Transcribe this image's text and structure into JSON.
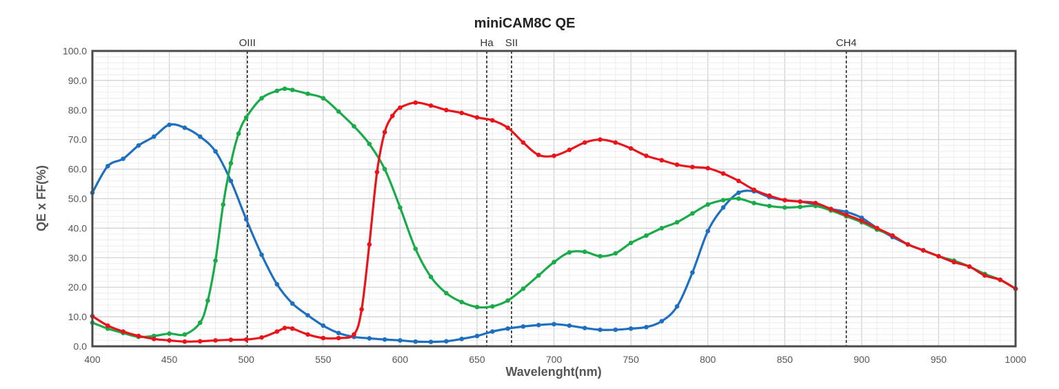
{
  "chart_data": {
    "type": "line",
    "title": "miniCAM8C QE",
    "xlabel": "Wavelenght(nm)",
    "ylabel": "QE x FF(%)",
    "xlim": [
      400,
      1000
    ],
    "ylim": [
      0,
      100
    ],
    "grid": true,
    "x_ticks": [
      "400",
      "450",
      "500",
      "550",
      "600",
      "650",
      "700",
      "750",
      "800",
      "850",
      "900",
      "950",
      "1000"
    ],
    "y_ticks": [
      "0.0",
      "10.0",
      "20.0",
      "30.0",
      "40.0",
      "50.0",
      "60.0",
      "70.0",
      "80.0",
      "90.0",
      "100.0"
    ],
    "reference_lines": [
      {
        "label": "OIII",
        "x": 500.7
      },
      {
        "label": "Ha",
        "x": 656.3
      },
      {
        "label": "SII",
        "x": 672.4
      },
      {
        "label": "CH4",
        "x": 890
      }
    ],
    "series": [
      {
        "name": "Blue",
        "color": "#1f6fbf",
        "x": [
          400,
          410,
          420,
          430,
          440,
          450,
          460,
          470,
          480,
          490,
          500,
          510,
          520,
          530,
          540,
          550,
          560,
          570,
          580,
          590,
          600,
          610,
          620,
          630,
          640,
          650,
          660,
          670,
          680,
          690,
          700,
          710,
          720,
          730,
          740,
          750,
          760,
          770,
          780,
          790,
          800,
          810,
          820,
          830,
          840,
          850,
          860,
          870,
          880,
          890,
          900,
          910,
          920,
          930,
          940,
          950,
          960,
          970,
          980,
          990,
          1000
        ],
        "y": [
          52,
          61,
          63.5,
          68,
          71,
          75,
          74,
          71,
          66,
          56,
          43,
          31,
          21,
          14.5,
          10.5,
          7,
          4.5,
          3.2,
          2.7,
          2.3,
          2,
          1.6,
          1.5,
          1.7,
          2.5,
          3.5,
          5,
          6,
          6.7,
          7.2,
          7.5,
          7,
          6.2,
          5.6,
          5.6,
          6,
          6.5,
          8.5,
          13.5,
          25,
          39,
          47,
          52,
          52.5,
          50.5,
          49.5,
          49,
          48,
          46.5,
          45.5,
          43.5,
          40,
          37,
          34.5,
          32.5,
          30.5,
          28.5,
          27,
          24,
          22.5,
          19.5
        ]
      },
      {
        "name": "Green",
        "color": "#1aaa4a",
        "x": [
          400,
          410,
          420,
          430,
          440,
          450,
          460,
          470,
          475,
          480,
          485,
          490,
          495,
          500,
          510,
          520,
          525,
          530,
          540,
          550,
          560,
          570,
          580,
          590,
          600,
          610,
          620,
          630,
          640,
          650,
          660,
          670,
          680,
          690,
          700,
          710,
          720,
          730,
          740,
          750,
          760,
          770,
          780,
          790,
          800,
          810,
          820,
          830,
          840,
          850,
          860,
          870,
          880,
          890,
          900,
          910,
          920,
          930,
          940,
          950,
          960,
          970,
          980,
          990,
          1000
        ],
        "y": [
          8,
          6,
          4.5,
          3.2,
          3.5,
          4.3,
          4,
          8,
          15.5,
          29,
          48,
          62,
          72,
          77.5,
          84,
          86.5,
          87.2,
          86.8,
          85.5,
          84,
          79.5,
          74.5,
          68.5,
          60,
          47,
          33,
          23.5,
          18,
          15,
          13.3,
          13.5,
          15.5,
          19.5,
          24,
          28.5,
          31.8,
          32,
          30.5,
          31.5,
          35,
          37.5,
          40,
          42,
          45,
          48,
          49.5,
          50,
          48.5,
          47.5,
          47,
          47.2,
          47.5,
          46,
          44,
          42,
          39.5,
          37.5,
          34.5,
          32.5,
          30.5,
          29,
          27,
          24.5,
          22.5,
          19.5
        ]
      },
      {
        "name": "Red",
        "color": "#e8141a",
        "x": [
          400,
          410,
          420,
          430,
          440,
          450,
          460,
          470,
          480,
          490,
          500,
          510,
          520,
          525,
          530,
          540,
          550,
          560,
          570,
          575,
          580,
          585,
          590,
          595,
          600,
          610,
          620,
          630,
          640,
          650,
          660,
          670,
          680,
          690,
          700,
          710,
          720,
          730,
          740,
          750,
          760,
          770,
          780,
          790,
          800,
          810,
          820,
          830,
          840,
          850,
          860,
          870,
          880,
          890,
          900,
          910,
          920,
          930,
          940,
          950,
          960,
          970,
          980,
          990,
          1000
        ],
        "y": [
          10.2,
          7,
          5,
          3.5,
          2.5,
          2,
          1.6,
          1.7,
          2,
          2.2,
          2.3,
          3,
          5,
          6.2,
          6,
          4,
          2.8,
          2.8,
          4,
          12.5,
          34.5,
          59,
          72.5,
          78,
          80.8,
          82.5,
          81.5,
          80,
          79,
          77.5,
          76.5,
          74,
          69,
          64.8,
          64.5,
          66.5,
          69,
          70,
          69,
          67,
          64.5,
          63,
          61.5,
          60.7,
          60.3,
          58.5,
          56,
          53,
          51,
          49.5,
          49,
          48.5,
          46.5,
          44.5,
          42.5,
          40,
          37.5,
          34.5,
          32.5,
          30.5,
          28.5,
          27,
          24,
          22.5,
          19.5
        ]
      }
    ]
  }
}
